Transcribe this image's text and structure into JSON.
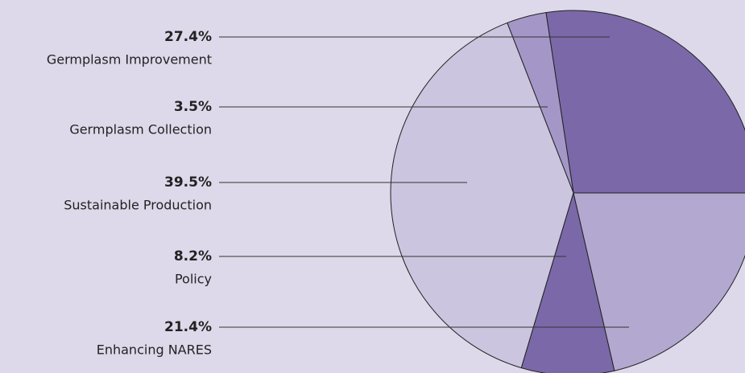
{
  "chart_data": {
    "type": "pie",
    "categories": [
      "Germplasm Improvement",
      "Germplasm Collection",
      "Sustainable Production",
      "Policy",
      "Enhancing NARES"
    ],
    "values": [
      27.4,
      3.5,
      39.5,
      8.2,
      21.4
    ],
    "value_labels": [
      "27.4%",
      "3.5%",
      "39.5%",
      "8.2%",
      "21.4%"
    ],
    "colors": [
      "#7b68a8",
      "#a497c8",
      "#cbc5df",
      "#7b68a8",
      "#b3a8cf"
    ]
  }
}
